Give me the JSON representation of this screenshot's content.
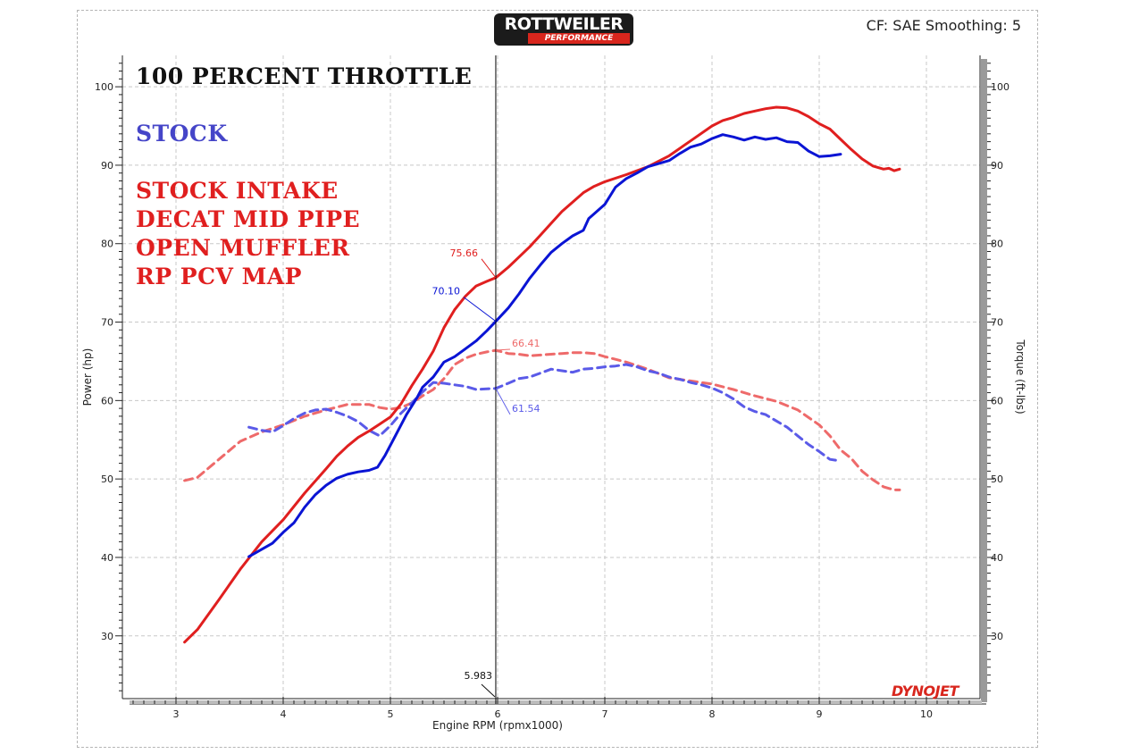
{
  "header": {
    "logo_text": "ROTTWEILER",
    "logo_sub": "PERFORMANCE",
    "cf_label": "CF: SAE Smoothing: 5",
    "brand_watermark": "DYNOJET"
  },
  "annotations": {
    "title": "100 PERCENT THROTTLE",
    "stock": "STOCK",
    "mods": [
      "STOCK INTAKE",
      "DECAT MID PIPE",
      "OPEN MUFFLER",
      "RP PCV MAP"
    ]
  },
  "colors": {
    "stock_power": "#0a14d4",
    "mod_power": "#e01f1f",
    "stock_torque": "#5a5ae8",
    "mod_torque": "#ee6a6a",
    "cursor": "#000000",
    "grid": "#c8c8c8"
  },
  "chart_data": {
    "type": "line",
    "xlabel": "Engine RPM (rpmx1000)",
    "ylabel": "Power (hp)",
    "y2label": "Torque (ft-lbs)",
    "xlim": [
      2.5,
      10.5
    ],
    "ylim": [
      22,
      104
    ],
    "y2lim": [
      22,
      104
    ],
    "x_ticks": [
      3,
      4,
      5,
      6,
      7,
      8,
      9,
      10
    ],
    "y_ticks": [
      30,
      40,
      50,
      60,
      70,
      80,
      90,
      100
    ],
    "y2_ticks": [
      30,
      40,
      50,
      60,
      70,
      80,
      90,
      100
    ],
    "grid": true,
    "cursor": {
      "x": 5.983,
      "label": "5.983",
      "readouts": [
        {
          "series": "mod_power",
          "value": 75.66,
          "label": "75.66"
        },
        {
          "series": "stock_power",
          "value": 70.1,
          "label": "70.10"
        },
        {
          "series": "mod_torque",
          "value": 66.41,
          "label": "66.41"
        },
        {
          "series": "stock_torque",
          "value": 61.54,
          "label": "61.54"
        }
      ]
    },
    "series": [
      {
        "key": "stock_power",
        "axis": "left",
        "style": "solid",
        "x": [
          3.68,
          3.9,
          4.0,
          4.1,
          4.2,
          4.3,
          4.4,
          4.5,
          4.6,
          4.7,
          4.8,
          4.88,
          4.95,
          5.05,
          5.15,
          5.25,
          5.3,
          5.4,
          5.5,
          5.6,
          5.7,
          5.8,
          5.9,
          5.983,
          6.1,
          6.2,
          6.3,
          6.4,
          6.5,
          6.6,
          6.7,
          6.8,
          6.85,
          6.9,
          7.0,
          7.1,
          7.2,
          7.3,
          7.4,
          7.5,
          7.6,
          7.7,
          7.8,
          7.9,
          8.0,
          8.1,
          8.2,
          8.3,
          8.4,
          8.5,
          8.6,
          8.7,
          8.8,
          8.9,
          9.0,
          9.1,
          9.2
        ],
        "y": [
          40.1,
          41.8,
          43.2,
          44.4,
          46.4,
          48.0,
          49.2,
          50.1,
          50.6,
          50.9,
          51.1,
          51.5,
          53.0,
          55.6,
          58.2,
          60.4,
          61.7,
          63.0,
          64.9,
          65.6,
          66.6,
          67.6,
          68.9,
          70.1,
          71.8,
          73.6,
          75.6,
          77.3,
          78.9,
          80.0,
          81.0,
          81.7,
          83.2,
          83.8,
          85.0,
          87.2,
          88.3,
          89.0,
          89.8,
          90.2,
          90.6,
          91.5,
          92.3,
          92.7,
          93.4,
          93.9,
          93.6,
          93.2,
          93.6,
          93.3,
          93.5,
          93.0,
          92.9,
          91.8,
          91.1,
          91.2,
          91.4
        ]
      },
      {
        "key": "mod_power",
        "axis": "left",
        "style": "solid",
        "x": [
          3.08,
          3.2,
          3.4,
          3.6,
          3.8,
          4.0,
          4.2,
          4.4,
          4.5,
          4.6,
          4.7,
          4.8,
          4.9,
          5.0,
          5.1,
          5.2,
          5.3,
          5.4,
          5.5,
          5.6,
          5.7,
          5.8,
          5.9,
          5.983,
          6.1,
          6.2,
          6.3,
          6.4,
          6.5,
          6.6,
          6.7,
          6.8,
          6.9,
          7.0,
          7.2,
          7.4,
          7.6,
          7.8,
          8.0,
          8.1,
          8.2,
          8.3,
          8.4,
          8.5,
          8.6,
          8.7,
          8.8,
          8.9,
          9.0,
          9.1,
          9.2,
          9.3,
          9.4,
          9.5,
          9.6,
          9.65,
          9.7,
          9.75
        ],
        "y": [
          29.2,
          30.8,
          34.6,
          38.5,
          42.0,
          44.8,
          48.2,
          51.3,
          52.9,
          54.2,
          55.3,
          56.1,
          57.0,
          57.9,
          59.6,
          61.9,
          64.0,
          66.3,
          69.3,
          71.6,
          73.3,
          74.6,
          75.2,
          75.66,
          77.0,
          78.3,
          79.6,
          81.1,
          82.6,
          84.1,
          85.3,
          86.5,
          87.3,
          87.9,
          88.8,
          89.8,
          91.2,
          93.1,
          95.0,
          95.7,
          96.1,
          96.6,
          96.9,
          97.2,
          97.4,
          97.3,
          96.9,
          96.2,
          95.3,
          94.6,
          93.3,
          92.0,
          90.8,
          89.9,
          89.5,
          89.6,
          89.3,
          89.5
        ]
      },
      {
        "key": "stock_torque",
        "axis": "right",
        "style": "dashed",
        "x": [
          3.68,
          3.8,
          3.9,
          4.0,
          4.1,
          4.2,
          4.3,
          4.4,
          4.5,
          4.6,
          4.7,
          4.8,
          4.9,
          5.0,
          5.1,
          5.2,
          5.3,
          5.4,
          5.5,
          5.6,
          5.7,
          5.8,
          5.9,
          5.983,
          6.1,
          6.2,
          6.3,
          6.4,
          6.5,
          6.6,
          6.7,
          6.8,
          6.9,
          7.0,
          7.1,
          7.2,
          7.3,
          7.4,
          7.5,
          7.6,
          7.7,
          7.8,
          7.9,
          8.0,
          8.1,
          8.2,
          8.3,
          8.4,
          8.5,
          8.6,
          8.7,
          8.8,
          8.9,
          9.0,
          9.1,
          9.2
        ],
        "y": [
          56.6,
          56.2,
          56.0,
          56.8,
          57.7,
          58.4,
          58.8,
          58.9,
          58.5,
          58.0,
          57.3,
          56.2,
          55.5,
          56.8,
          58.4,
          59.7,
          61.1,
          62.3,
          62.2,
          62.0,
          61.8,
          61.4,
          61.5,
          61.54,
          62.2,
          62.8,
          63.0,
          63.5,
          64.0,
          63.8,
          63.6,
          64.0,
          64.1,
          64.3,
          64.4,
          64.6,
          64.3,
          63.8,
          63.5,
          63.0,
          62.7,
          62.3,
          62.0,
          61.6,
          61.0,
          60.2,
          59.2,
          58.6,
          58.2,
          57.4,
          56.6,
          55.5,
          54.4,
          53.5,
          52.5,
          52.3
        ]
      },
      {
        "key": "mod_torque",
        "axis": "right",
        "style": "dashed",
        "x": [
          3.08,
          3.2,
          3.4,
          3.6,
          3.8,
          4.0,
          4.2,
          4.4,
          4.6,
          4.8,
          4.9,
          5.0,
          5.1,
          5.2,
          5.3,
          5.4,
          5.5,
          5.6,
          5.7,
          5.8,
          5.9,
          5.983,
          6.1,
          6.2,
          6.3,
          6.4,
          6.5,
          6.6,
          6.7,
          6.8,
          6.9,
          7.0,
          7.2,
          7.4,
          7.6,
          7.8,
          8.0,
          8.2,
          8.4,
          8.6,
          8.8,
          9.0,
          9.1,
          9.2,
          9.3,
          9.4,
          9.5,
          9.6,
          9.7,
          9.75
        ],
        "y": [
          49.8,
          50.2,
          52.5,
          54.8,
          56.0,
          56.9,
          58.0,
          58.8,
          59.5,
          59.5,
          59.1,
          58.9,
          59.1,
          59.7,
          60.6,
          61.4,
          62.8,
          64.6,
          65.4,
          65.9,
          66.2,
          66.41,
          66.0,
          65.9,
          65.7,
          65.8,
          65.9,
          66.0,
          66.1,
          66.1,
          66.0,
          65.6,
          64.9,
          64.0,
          62.9,
          62.5,
          62.1,
          61.4,
          60.6,
          59.9,
          58.8,
          56.9,
          55.5,
          53.7,
          52.6,
          51.0,
          49.9,
          49.0,
          48.6,
          48.6
        ]
      }
    ]
  }
}
